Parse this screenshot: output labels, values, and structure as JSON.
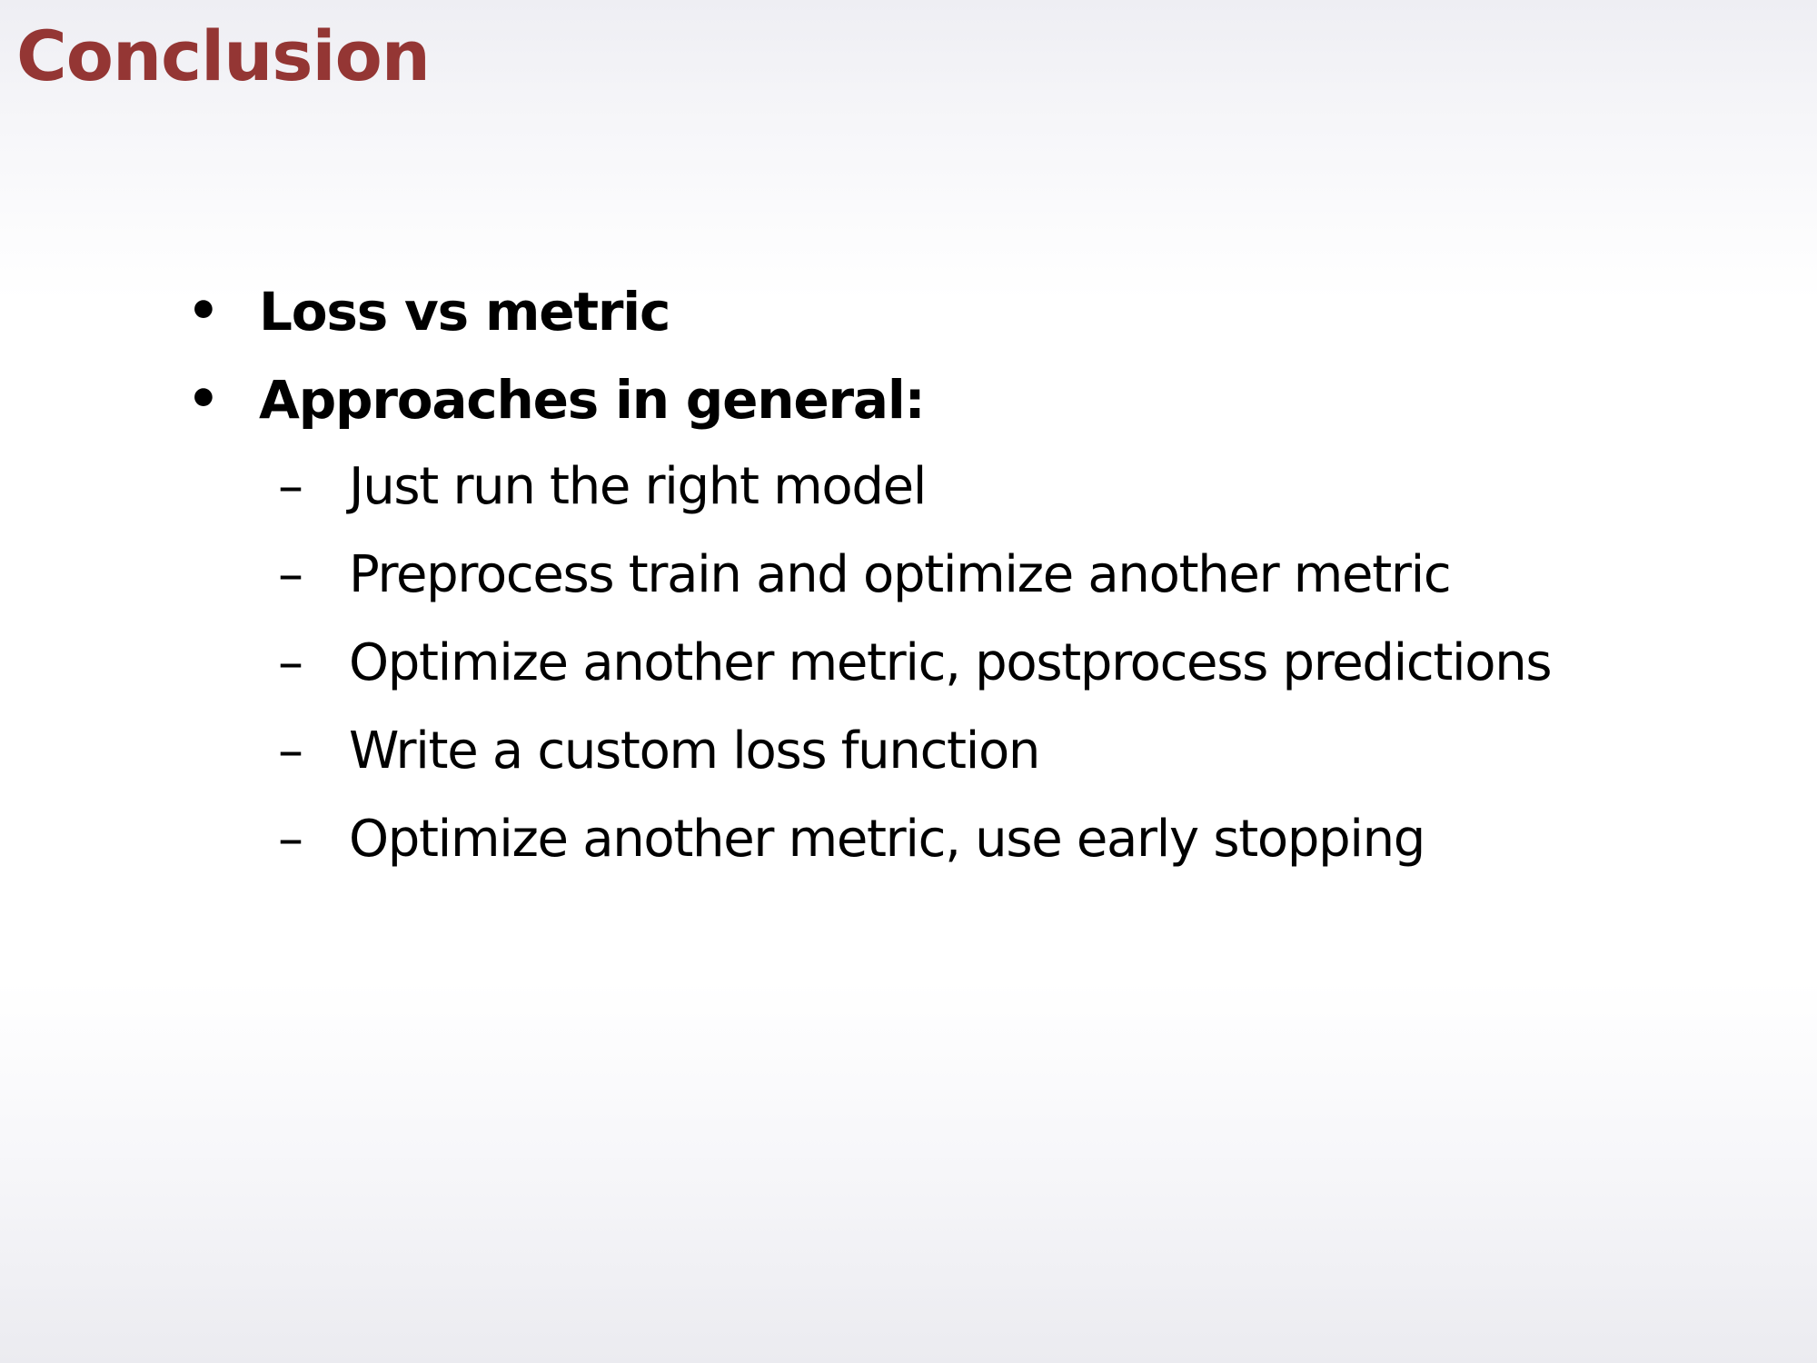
{
  "slide": {
    "title": "Conclusion",
    "colors": {
      "title": "#943634",
      "text": "#000000"
    },
    "bullets": [
      {
        "marker": "•",
        "text": "Loss vs metric"
      },
      {
        "marker": "•",
        "text": "Approaches in general:"
      }
    ],
    "sub_bullets": [
      {
        "marker": "–",
        "text": "Just run the right model"
      },
      {
        "marker": "–",
        "text": "Preprocess train and optimize another metric"
      },
      {
        "marker": "–",
        "text": "Optimize another metric, postprocess predictions"
      },
      {
        "marker": "–",
        "text": "Write a custom loss function"
      },
      {
        "marker": "–",
        "text": "Optimize another metric, use early stopping"
      }
    ]
  }
}
